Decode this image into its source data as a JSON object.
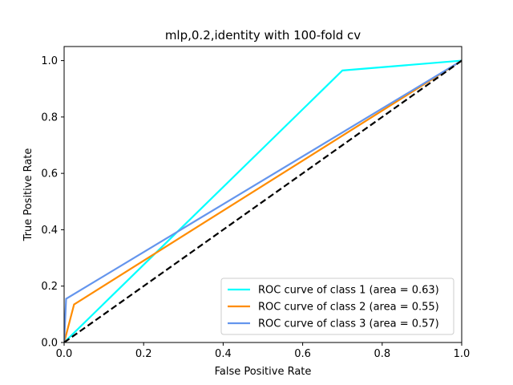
{
  "chart_data": {
    "type": "line",
    "title": "mlp,0.2,identity with 100-fold cv",
    "xlabel": "False Positive Rate",
    "ylabel": "True Positive Rate",
    "xlim": [
      0.0,
      1.0
    ],
    "ylim": [
      0.0,
      1.05
    ],
    "xticks": [
      0.0,
      0.2,
      0.4,
      0.6,
      0.8,
      1.0
    ],
    "yticks": [
      0.0,
      0.2,
      0.4,
      0.6,
      0.8,
      1.0
    ],
    "xtick_labels": [
      "0.0",
      "0.2",
      "0.4",
      "0.6",
      "0.8",
      "1.0"
    ],
    "ytick_labels": [
      "0.0",
      "0.2",
      "0.4",
      "0.6",
      "0.8",
      "1.0"
    ],
    "grid": false,
    "legend_position": "lower-right",
    "series": [
      {
        "name": "ROC curve of class 1 (area = 0.63)",
        "color": "#00ffff",
        "x": [
          0.0,
          0.7,
          1.0
        ],
        "y": [
          0.0,
          0.965,
          1.0
        ]
      },
      {
        "name": "ROC curve of class 2 (area = 0.55)",
        "color": "#ff8c00",
        "x": [
          0.0,
          0.025,
          1.0
        ],
        "y": [
          0.0,
          0.135,
          1.0
        ]
      },
      {
        "name": "ROC curve of class 3 (area = 0.57)",
        "color": "#6495ed",
        "x": [
          0.0,
          0.005,
          1.0
        ],
        "y": [
          0.0,
          0.155,
          1.0
        ]
      }
    ],
    "reference_line": {
      "color": "#000000",
      "style": "dashed",
      "x": [
        0.0,
        1.0
      ],
      "y": [
        0.0,
        1.0
      ]
    }
  }
}
